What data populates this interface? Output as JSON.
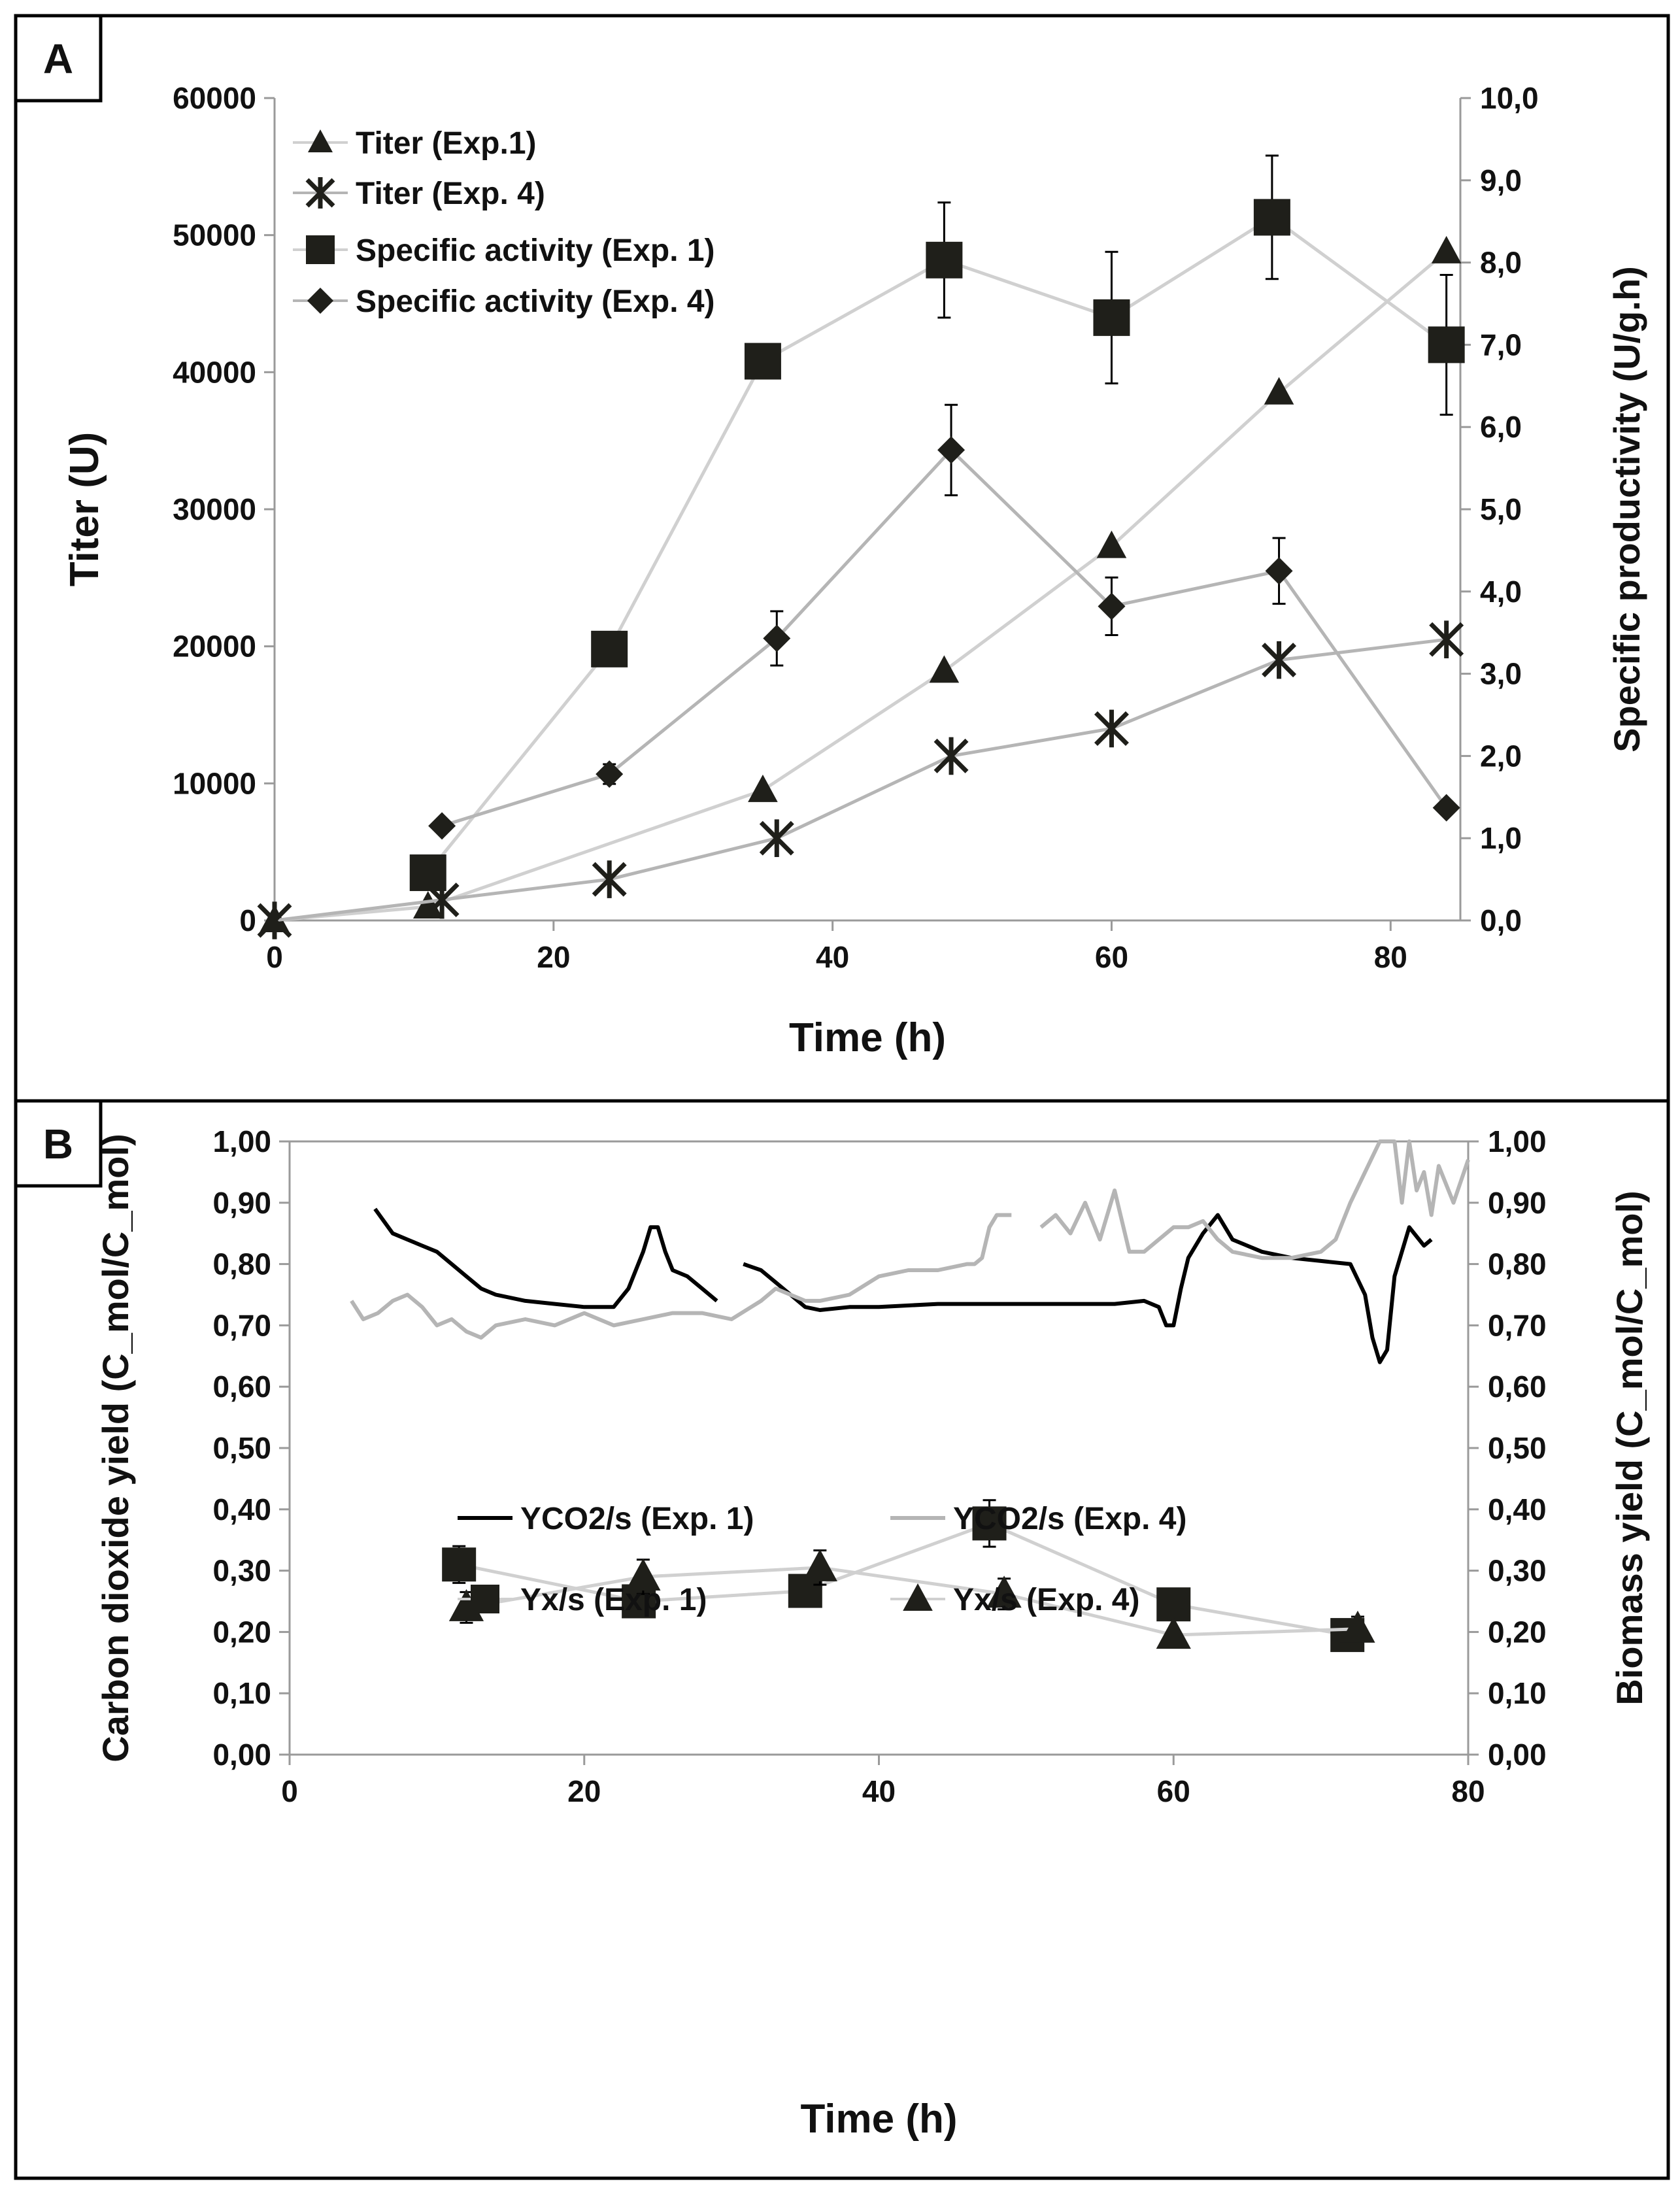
{
  "colors": {
    "black": "#000000",
    "marker": "#1f1f1a",
    "light_gray": "#d0d0d0",
    "mid_gray": "#b5b5b5",
    "axis_gray": "#9a9a9a"
  },
  "panels": {
    "a": {
      "label": "A"
    },
    "b": {
      "label": "B"
    }
  },
  "chart_data": [
    {
      "panel": "A",
      "type": "line",
      "xlabel": "Time (h)",
      "ylabel": "Titer (U)",
      "y2label": "Specific productivity (U/g.h)",
      "xlim": [
        0,
        85
      ],
      "ylim": [
        0,
        60000
      ],
      "y2lim": [
        0,
        10
      ],
      "xticks": [
        "0",
        "20",
        "40",
        "60",
        "80"
      ],
      "yticks": [
        "0",
        "10000",
        "20000",
        "30000",
        "40000",
        "50000",
        "60000"
      ],
      "y2ticks": [
        "0,0",
        "1,0",
        "2,0",
        "3,0",
        "4,0",
        "5,0",
        "6,0",
        "7,0",
        "8,0",
        "9,0",
        "10,0"
      ],
      "series": [
        {
          "name": "Titer (Exp.1)",
          "axis": "left",
          "marker": "triangle",
          "line": "light",
          "x": [
            0,
            11,
            35,
            48,
            60,
            72,
            84
          ],
          "y": [
            0,
            1000,
            9500,
            18200,
            27300,
            38500,
            48800
          ]
        },
        {
          "name": "Titer (Exp. 4)",
          "axis": "left",
          "marker": "star",
          "line": "mid",
          "x": [
            0,
            12,
            24,
            36,
            48.5,
            60,
            72,
            84
          ],
          "y": [
            0,
            1500,
            3000,
            6000,
            12000,
            14000,
            19000,
            20500
          ]
        },
        {
          "name": "Specific activity (Exp. 1)",
          "axis": "right",
          "marker": "square",
          "line": "light",
          "x": [
            11,
            24,
            35,
            48,
            60,
            71.5,
            84
          ],
          "y": [
            0.58,
            3.3,
            6.8,
            8.03,
            7.33,
            8.55,
            7.0
          ],
          "err": [
            0,
            0,
            0.2,
            0.7,
            0.8,
            0.75,
            0.85
          ]
        },
        {
          "name": "Specific activity (Exp. 4)",
          "axis": "right",
          "marker": "diamond",
          "line": "mid",
          "x": [
            12,
            24,
            36,
            48.5,
            60,
            72,
            84
          ],
          "y": [
            1.15,
            1.78,
            3.43,
            5.72,
            3.82,
            4.25,
            1.37
          ],
          "err": [
            0,
            0.12,
            0.33,
            0.55,
            0.35,
            0.4,
            0
          ]
        }
      ]
    },
    {
      "panel": "B",
      "type": "line",
      "xlabel": "Time (h)",
      "ylabel": "Carbon dioxide yield (C_mol/C_mol)",
      "y2label": "Biomass yield (C_mol/C_mol)",
      "xlim": [
        0,
        80
      ],
      "ylim": [
        0,
        1
      ],
      "y2lim": [
        0,
        1
      ],
      "xticks": [
        "0",
        "20",
        "40",
        "60",
        "80"
      ],
      "yticks": [
        "0,00",
        "0,10",
        "0,20",
        "0,30",
        "0,40",
        "0,50",
        "0,60",
        "0,70",
        "0,80",
        "0,90",
        "1,00"
      ],
      "y2ticks": [
        "0,00",
        "0,10",
        "0,20",
        "0,30",
        "0,40",
        "0,50",
        "0,60",
        "0,70",
        "0,80",
        "0,90",
        "1,00"
      ],
      "series": [
        {
          "name": "YCO2/s (Exp. 1)",
          "axis": "left",
          "marker": "none",
          "line": "black",
          "segments": [
            {
              "x": [
                5.8,
                7,
                8,
                9,
                10,
                11,
                12,
                13,
                14,
                16,
                18,
                20,
                22,
                23,
                24,
                24.5,
                25,
                25.5,
                26,
                27,
                28,
                29
              ],
              "y": [
                0.89,
                0.85,
                0.84,
                0.83,
                0.82,
                0.8,
                0.78,
                0.76,
                0.75,
                0.74,
                0.735,
                0.73,
                0.73,
                0.76,
                0.82,
                0.86,
                0.86,
                0.82,
                0.79,
                0.78,
                0.76,
                0.74
              ]
            },
            {
              "x": [
                30.8,
                32,
                33,
                34,
                35,
                36,
                38,
                40,
                44,
                48,
                52,
                56,
                58,
                59,
                59.5,
                60,
                60.5,
                61,
                62,
                63,
                64,
                66,
                68,
                70,
                72,
                73,
                73.5,
                74,
                74.5,
                75,
                76,
                77,
                77.5
              ],
              "y": [
                0.8,
                0.79,
                0.77,
                0.75,
                0.73,
                0.725,
                0.73,
                0.73,
                0.735,
                0.735,
                0.735,
                0.735,
                0.74,
                0.73,
                0.7,
                0.7,
                0.76,
                0.81,
                0.85,
                0.88,
                0.84,
                0.82,
                0.81,
                0.805,
                0.8,
                0.75,
                0.68,
                0.64,
                0.66,
                0.78,
                0.86,
                0.83,
                0.84
              ]
            }
          ]
        },
        {
          "name": "YCO2/s (Exp. 4)",
          "axis": "left",
          "marker": "none",
          "line": "mid",
          "segments": [
            {
              "x": [
                4.2,
                5,
                6,
                7,
                8,
                9,
                10,
                11,
                12,
                13,
                14,
                16,
                18,
                20,
                22,
                24,
                26,
                28,
                30,
                32,
                33,
                34,
                35,
                36,
                38,
                40,
                42,
                44,
                46,
                46.5,
                47,
                47.5,
                48,
                48.5,
                49
              ],
              "y": [
                0.74,
                0.71,
                0.72,
                0.74,
                0.75,
                0.73,
                0.7,
                0.71,
                0.69,
                0.68,
                0.7,
                0.71,
                0.7,
                0.72,
                0.7,
                0.71,
                0.72,
                0.72,
                0.71,
                0.74,
                0.76,
                0.75,
                0.74,
                0.74,
                0.75,
                0.78,
                0.79,
                0.79,
                0.8,
                0.8,
                0.81,
                0.86,
                0.88,
                0.88,
                0.88
              ]
            },
            {
              "x": [
                51,
                52,
                53,
                54,
                55,
                56,
                57,
                58,
                59,
                60,
                61,
                62,
                63,
                64,
                66,
                68,
                70,
                71,
                72,
                73,
                74,
                75,
                75.5,
                76,
                76.5,
                77,
                77.5,
                78,
                79,
                80
              ],
              "y": [
                0.86,
                0.88,
                0.85,
                0.9,
                0.84,
                0.92,
                0.82,
                0.82,
                0.84,
                0.86,
                0.86,
                0.87,
                0.84,
                0.82,
                0.81,
                0.81,
                0.82,
                0.84,
                0.9,
                0.95,
                1.0,
                1.0,
                0.9,
                1.0,
                0.92,
                0.95,
                0.88,
                0.96,
                0.9,
                0.97
              ]
            }
          ]
        },
        {
          "name": "Yx/s (Exp. 1)",
          "axis": "right",
          "marker": "square",
          "line": "light",
          "x": [
            11.5,
            23.7,
            35,
            47.5,
            60,
            71.8
          ],
          "y": [
            0.31,
            0.25,
            0.267,
            0.377,
            0.245,
            0.195
          ],
          "err": [
            0.03,
            0.025,
            0.025,
            0.038,
            0.02,
            0.015
          ]
        },
        {
          "name": "Yx/s (Exp. 4)",
          "axis": "right",
          "marker": "triangle",
          "line": "light",
          "x": [
            12,
            24,
            36,
            48.5,
            60,
            72.5
          ],
          "y": [
            0.24,
            0.29,
            0.305,
            0.262,
            0.195,
            0.205
          ],
          "err": [
            0.025,
            0.028,
            0.028,
            0.025,
            0,
            0.02
          ]
        }
      ]
    }
  ]
}
